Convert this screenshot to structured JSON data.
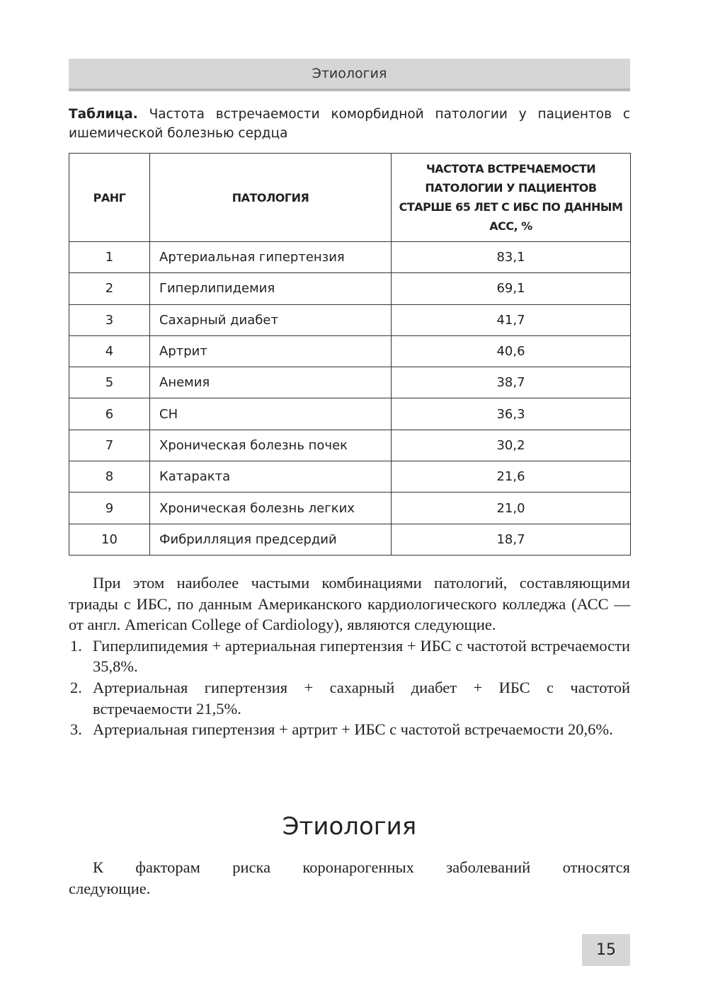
{
  "running_header": "Этиология",
  "caption": {
    "label": "Таблица.",
    "text": " Частота встречаемости коморбидной патологии у пациентов с ишемической болезнью сердца"
  },
  "table": {
    "headers": [
      "РАНГ",
      "ПАТОЛОГИЯ",
      "ЧАСТОТА ВСТРЕЧАЕМОСТИ ПАТОЛОГИИ У ПАЦИЕНТОВ СТАРШЕ 65 ЛЕТ С ИБС ПО ДАННЫМ АСС, %"
    ],
    "rows": [
      [
        "1",
        "Артериальная гипертензия",
        "83,1"
      ],
      [
        "2",
        "Гиперлипидемия",
        "69,1"
      ],
      [
        "3",
        "Сахарный диабет",
        "41,7"
      ],
      [
        "4",
        "Артрит",
        "40,6"
      ],
      [
        "5",
        "Анемия",
        "38,7"
      ],
      [
        "6",
        "СН",
        "36,3"
      ],
      [
        "7",
        "Хроническая болезнь почек",
        "30,2"
      ],
      [
        "8",
        "Катаракта",
        "21,6"
      ],
      [
        "9",
        "Хроническая болезнь легких",
        "21,0"
      ],
      [
        "10",
        "Фибрилляция предсердий",
        "18,7"
      ]
    ]
  },
  "paragraph1": "При этом наиболее частыми комбинациями патологий, составляющими триады с ИБС, по данным Американского кардиологического колледжа (АСС — от англ. American College of Cardiology), являются следующие.",
  "list": [
    {
      "num": "1.",
      "text": "Гиперлипидемия + артериальная гипертензия + ИБС с частотой встречаемости 35,8%."
    },
    {
      "num": "2.",
      "text": "Артериальная гипертензия + сахарный диабет + ИБС с частотой встречаемости 21,5%."
    },
    {
      "num": "3.",
      "text": "Артериальная гипертензия + артрит + ИБС с частотой встречаемости 20,6%."
    }
  ],
  "section_heading": "Этиология",
  "paragraph2": "К факторам риска коронарогенных заболеваний относятся следующие.",
  "page_number": "15"
}
